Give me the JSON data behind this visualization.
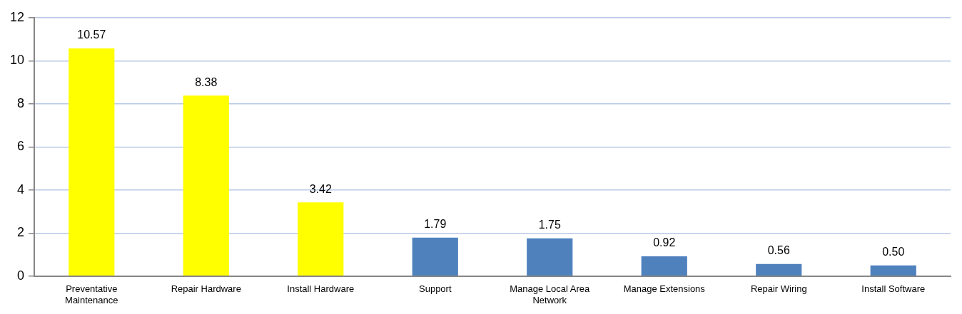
{
  "chart_data": {
    "type": "bar",
    "categories": [
      "Preventative Maintenance",
      "Repair Hardware",
      "Install Hardware",
      "Support",
      "Manage Local Area Network",
      "Manage Extensions",
      "Repair Wiring",
      "Install Software"
    ],
    "values": [
      10.57,
      8.38,
      3.42,
      1.79,
      1.75,
      0.92,
      0.56,
      0.5
    ],
    "value_labels": [
      "10.57",
      "8.38",
      "3.42",
      "1.79",
      "1.75",
      "0.92",
      "0.56",
      "0.50"
    ],
    "colors": [
      "#ffff00",
      "#ffff00",
      "#ffff00",
      "#4f81bd",
      "#4f81bd",
      "#4f81bd",
      "#4f81bd",
      "#4f81bd"
    ],
    "ylim": [
      0,
      12
    ],
    "yticks": [
      0,
      2,
      4,
      6,
      8,
      10,
      12
    ],
    "grid": "y",
    "legend": false
  }
}
